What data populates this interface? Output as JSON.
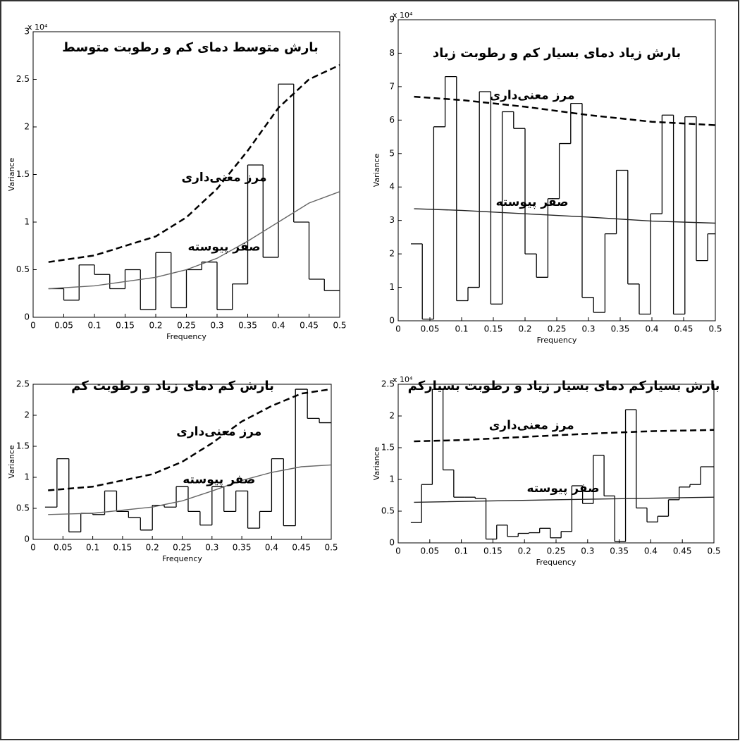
{
  "chart_data": [
    {
      "type": "line",
      "title": "بارش متوسط دمای کم و رطوبت متوسط",
      "xlabel": "Frequency",
      "ylabel": "Variance",
      "y_multiplier": "x 10⁴",
      "xlim": [
        0,
        0.5
      ],
      "ylim": [
        0,
        3
      ],
      "xticks": [
        0,
        0.05,
        0.1,
        0.15,
        0.2,
        0.25,
        0.3,
        0.35,
        0.4,
        0.45,
        0.5
      ],
      "yticks": [
        0,
        0.5,
        1,
        1.5,
        2,
        2.5,
        3
      ],
      "series": [
        {
          "style": "step",
          "color": "#000000",
          "x": [
            0.025,
            0.05,
            0.075,
            0.1,
            0.125,
            0.15,
            0.175,
            0.2,
            0.225,
            0.25,
            0.275,
            0.3,
            0.325,
            0.35,
            0.375,
            0.4,
            0.425,
            0.45,
            0.475
          ],
          "values": [
            0.3,
            0.18,
            0.55,
            0.45,
            0.3,
            0.5,
            0.08,
            0.68,
            0.1,
            0.5,
            0.58,
            0.08,
            0.35,
            1.6,
            0.63,
            2.45,
            1.0,
            0.4,
            0.28
          ]
        },
        {
          "name": "مرز معنی‌داری",
          "style": "dashed",
          "color": "#000000",
          "x": [
            0.025,
            0.1,
            0.2,
            0.25,
            0.3,
            0.35,
            0.4,
            0.45,
            0.5
          ],
          "values": [
            0.58,
            0.65,
            0.85,
            1.05,
            1.35,
            1.75,
            2.2,
            2.5,
            2.65
          ]
        },
        {
          "name": "صفر پیوسته",
          "style": "solid",
          "color": "#666666",
          "x": [
            0.025,
            0.1,
            0.2,
            0.25,
            0.3,
            0.35,
            0.4,
            0.45,
            0.5
          ],
          "values": [
            0.3,
            0.33,
            0.42,
            0.5,
            0.62,
            0.8,
            1.0,
            1.2,
            1.32
          ]
        }
      ]
    },
    {
      "type": "line",
      "title": "بارش زیاد دمای بسیار کم و رطوبت زیاد",
      "xlabel": "Frequency",
      "ylabel": "Variance",
      "y_multiplier": "x 10⁴",
      "xlim": [
        0,
        0.5
      ],
      "ylim": [
        0,
        9
      ],
      "xticks": [
        0,
        0.05,
        0.1,
        0.15,
        0.2,
        0.25,
        0.3,
        0.35,
        0.4,
        0.45,
        0.5
      ],
      "yticks": [
        0,
        1,
        2,
        3,
        4,
        5,
        6,
        7,
        8,
        9
      ],
      "series": [
        {
          "style": "step",
          "color": "#000000",
          "x": [
            0.02,
            0.038,
            0.056,
            0.074,
            0.092,
            0.11,
            0.128,
            0.146,
            0.164,
            0.182,
            0.2,
            0.218,
            0.236,
            0.254,
            0.272,
            0.29,
            0.308,
            0.326,
            0.344,
            0.362,
            0.38,
            0.398,
            0.416,
            0.434,
            0.452,
            0.47,
            0.488
          ],
          "values": [
            2.3,
            0.05,
            5.8,
            7.3,
            0.6,
            1.0,
            6.85,
            0.5,
            6.25,
            5.75,
            2.0,
            1.3,
            3.65,
            5.3,
            6.5,
            0.7,
            0.25,
            2.6,
            4.5,
            1.1,
            0.2,
            3.2,
            6.15,
            0.2,
            6.1,
            1.8,
            2.6
          ]
        },
        {
          "name": "مرز معنی‌داری",
          "style": "dashed",
          "color": "#000000",
          "x": [
            0.025,
            0.1,
            0.2,
            0.3,
            0.4,
            0.5
          ],
          "values": [
            6.7,
            6.6,
            6.4,
            6.15,
            5.95,
            5.85
          ]
        },
        {
          "name": "صفر پیوسته",
          "style": "solid",
          "color": "#222222",
          "x": [
            0.025,
            0.1,
            0.2,
            0.3,
            0.4,
            0.5
          ],
          "values": [
            3.35,
            3.3,
            3.2,
            3.1,
            2.98,
            2.92
          ]
        }
      ]
    },
    {
      "type": "line",
      "title": "بارش کم دمای زیاد و رطوبت کم",
      "xlabel": "Frequency",
      "ylabel": "Variance",
      "xlim": [
        0,
        0.5
      ],
      "ylim": [
        0,
        2.5
      ],
      "xticks": [
        0,
        0.05,
        0.1,
        0.15,
        0.2,
        0.25,
        0.3,
        0.35,
        0.4,
        0.45,
        0.5
      ],
      "yticks": [
        0,
        0.5,
        1,
        1.5,
        2,
        2.5
      ],
      "series": [
        {
          "style": "step",
          "color": "#000000",
          "x": [
            0.02,
            0.04,
            0.06,
            0.08,
            0.1,
            0.12,
            0.14,
            0.16,
            0.18,
            0.2,
            0.22,
            0.24,
            0.26,
            0.28,
            0.3,
            0.32,
            0.34,
            0.36,
            0.38,
            0.4,
            0.42,
            0.44,
            0.46,
            0.48
          ],
          "values": [
            0.52,
            1.3,
            0.12,
            0.42,
            0.4,
            0.78,
            0.45,
            0.35,
            0.15,
            0.55,
            0.52,
            0.85,
            0.45,
            0.23,
            0.85,
            0.45,
            0.78,
            0.18,
            0.45,
            1.3,
            0.22,
            2.42,
            1.95,
            1.88
          ]
        },
        {
          "name": "مرز معنی‌داری",
          "style": "dashed",
          "color": "#000000",
          "x": [
            0.025,
            0.1,
            0.2,
            0.25,
            0.3,
            0.35,
            0.4,
            0.45,
            0.5
          ],
          "values": [
            0.79,
            0.85,
            1.05,
            1.25,
            1.55,
            1.9,
            2.15,
            2.35,
            2.42
          ]
        },
        {
          "name": "صفر پیوسته",
          "style": "solid",
          "color": "#666666",
          "x": [
            0.025,
            0.1,
            0.2,
            0.25,
            0.3,
            0.35,
            0.4,
            0.45,
            0.5
          ],
          "values": [
            0.4,
            0.42,
            0.52,
            0.62,
            0.78,
            0.95,
            1.08,
            1.17,
            1.2
          ]
        }
      ]
    },
    {
      "type": "line",
      "title": "بارش بسیارکم دمای بسیار زیاد و رطوبت بسیارکم",
      "xlabel": "Frequency",
      "ylabel": "Variance",
      "y_multiplier": "x 10⁴",
      "xlim": [
        0,
        0.5
      ],
      "ylim": [
        0,
        2.5
      ],
      "xticks": [
        0,
        0.05,
        0.1,
        0.15,
        0.2,
        0.25,
        0.3,
        0.35,
        0.4,
        0.45,
        0.5
      ],
      "yticks": [
        0,
        0.5,
        1,
        1.5,
        2,
        2.5
      ],
      "series": [
        {
          "style": "step",
          "color": "#000000",
          "x": [
            0.02,
            0.037,
            0.054,
            0.071,
            0.088,
            0.105,
            0.122,
            0.139,
            0.156,
            0.173,
            0.19,
            0.207,
            0.224,
            0.241,
            0.258,
            0.275,
            0.292,
            0.309,
            0.326,
            0.343,
            0.36,
            0.377,
            0.394,
            0.411,
            0.428,
            0.445,
            0.462,
            0.479
          ],
          "values": [
            0.32,
            0.92,
            2.42,
            1.15,
            0.72,
            0.72,
            0.7,
            0.06,
            0.28,
            0.1,
            0.15,
            0.16,
            0.23,
            0.08,
            0.18,
            0.9,
            0.62,
            1.38,
            0.74,
            0.02,
            2.1,
            0.55,
            0.33,
            0.42,
            0.68,
            0.88,
            0.92,
            1.2
          ]
        },
        {
          "name": "مرز معنی‌داری",
          "style": "dashed",
          "color": "#000000",
          "x": [
            0.025,
            0.1,
            0.2,
            0.3,
            0.4,
            0.5
          ],
          "values": [
            1.6,
            1.62,
            1.67,
            1.72,
            1.76,
            1.78
          ]
        },
        {
          "name": "صفر پیوسته",
          "style": "solid",
          "color": "#222222",
          "x": [
            0.025,
            0.25,
            0.5
          ],
          "values": [
            0.64,
            0.68,
            0.72
          ]
        }
      ]
    }
  ]
}
